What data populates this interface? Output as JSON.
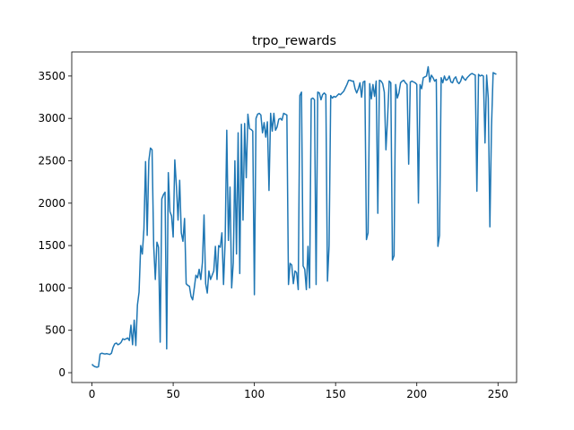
{
  "chart_data": {
    "type": "line",
    "title": "trpo_rewards",
    "x": [
      0,
      1,
      2,
      3,
      4,
      5,
      6,
      7,
      8,
      9,
      10,
      11,
      12,
      13,
      14,
      15,
      16,
      17,
      18,
      19,
      20,
      21,
      22,
      23,
      24,
      25,
      26,
      27,
      28,
      29,
      30,
      31,
      32,
      33,
      34,
      35,
      36,
      37,
      38,
      39,
      40,
      41,
      42,
      43,
      44,
      45,
      46,
      47,
      48,
      49,
      50,
      51,
      52,
      53,
      54,
      55,
      56,
      57,
      58,
      59,
      60,
      61,
      62,
      63,
      64,
      65,
      66,
      67,
      68,
      69,
      70,
      71,
      72,
      73,
      74,
      75,
      76,
      77,
      78,
      79,
      80,
      81,
      82,
      83,
      84,
      85,
      86,
      87,
      88,
      89,
      90,
      91,
      92,
      93,
      94,
      95,
      96,
      97,
      98,
      99,
      100,
      101,
      102,
      103,
      104,
      105,
      106,
      107,
      108,
      109,
      110,
      111,
      112,
      113,
      114,
      115,
      116,
      117,
      118,
      119,
      120,
      121,
      122,
      123,
      124,
      125,
      126,
      127,
      128,
      129,
      130,
      131,
      132,
      133,
      134,
      135,
      136,
      137,
      138,
      139,
      140,
      141,
      142,
      143,
      144,
      145,
      146,
      147,
      148,
      149,
      150,
      151,
      152,
      153,
      154,
      155,
      156,
      157,
      158,
      159,
      160,
      161,
      162,
      163,
      164,
      165,
      166,
      167,
      168,
      169,
      170,
      171,
      172,
      173,
      174,
      175,
      176,
      177,
      178,
      179,
      180,
      181,
      182,
      183,
      184,
      185,
      186,
      187,
      188,
      189,
      190,
      191,
      192,
      193,
      194,
      195,
      196,
      197,
      198,
      199,
      200,
      201,
      202,
      203,
      204,
      205,
      206,
      207,
      208,
      209,
      210,
      211,
      212,
      213,
      214,
      215,
      216,
      217,
      218,
      219,
      220,
      221,
      222,
      223,
      224,
      225,
      226,
      227,
      228,
      229,
      230,
      231,
      232,
      233,
      234,
      235,
      236,
      237,
      238,
      239,
      240,
      241,
      242,
      243,
      244,
      245,
      246,
      247,
      248,
      249
    ],
    "series": [
      {
        "color": "#1f77b4",
        "values": [
          100,
          80,
          70,
          65,
          70,
          220,
          230,
          225,
          220,
          225,
          220,
          215,
          230,
          300,
          340,
          350,
          330,
          340,
          360,
          400,
          390,
          400,
          410,
          380,
          560,
          330,
          620,
          320,
          800,
          950,
          1500,
          1400,
          1700,
          2490,
          1620,
          2500,
          2650,
          2630,
          1500,
          1100,
          1540,
          1480,
          360,
          2050,
          2100,
          2130,
          280,
          2360,
          1900,
          1850,
          1600,
          2510,
          2200,
          1800,
          2270,
          1650,
          1550,
          1820,
          1050,
          1030,
          1020,
          900,
          860,
          1000,
          1150,
          1120,
          1220,
          1100,
          1300,
          1860,
          1050,
          940,
          1200,
          1100,
          1150,
          1200,
          1490,
          1100,
          1500,
          1480,
          1650,
          1040,
          1550,
          2860,
          1560,
          2190,
          1000,
          1300,
          2500,
          1400,
          2830,
          1170,
          2930,
          1800,
          2940,
          2300,
          3050,
          2880,
          2870,
          2850,
          920,
          3000,
          3050,
          3060,
          3040,
          2830,
          2950,
          2780,
          2960,
          2150,
          3060,
          2850,
          3060,
          2860,
          2900,
          2990,
          3000,
          2980,
          3060,
          3050,
          3040,
          1040,
          1290,
          1270,
          1050,
          1200,
          1180,
          980,
          3270,
          3310,
          1260,
          1220,
          980,
          1490,
          1000,
          3230,
          3240,
          3220,
          1040,
          3310,
          3300,
          3220,
          3280,
          3300,
          3280,
          1080,
          1500,
          3270,
          3240,
          3260,
          3250,
          3270,
          3290,
          3280,
          3300,
          3320,
          3360,
          3400,
          3450,
          3450,
          3440,
          3440,
          3350,
          3300,
          3350,
          3420,
          3250,
          3430,
          3440,
          1570,
          1650,
          3410,
          3230,
          3400,
          3260,
          3440,
          1880,
          3450,
          3440,
          3410,
          3310,
          2630,
          3000,
          3440,
          3420,
          1330,
          1380,
          3400,
          3240,
          3300,
          3420,
          3440,
          3450,
          3420,
          3400,
          2460,
          3430,
          3440,
          3430,
          3420,
          3400,
          2000,
          3400,
          3350,
          3480,
          3490,
          3500,
          3610,
          3430,
          3510,
          3480,
          3440,
          3460,
          1490,
          1620,
          3480,
          3420,
          3500,
          3450,
          3460,
          3500,
          3430,
          3420,
          3470,
          3490,
          3430,
          3410,
          3440,
          3500,
          3470,
          3450,
          3480,
          3500,
          3520,
          3530,
          3520,
          3510,
          2140,
          3520,
          3500,
          3510,
          3500,
          2710,
          3510,
          3240,
          1720,
          2900,
          3540,
          3530,
          3520
        ]
      }
    ],
    "xlim": [
      -12.45,
      261.45
    ],
    "ylim": [
      -116,
      3784
    ],
    "xticks": [
      0,
      50,
      100,
      150,
      200,
      250
    ],
    "yticks": [
      0,
      500,
      1000,
      1500,
      2000,
      2500,
      3000,
      3500
    ],
    "grid": false
  }
}
